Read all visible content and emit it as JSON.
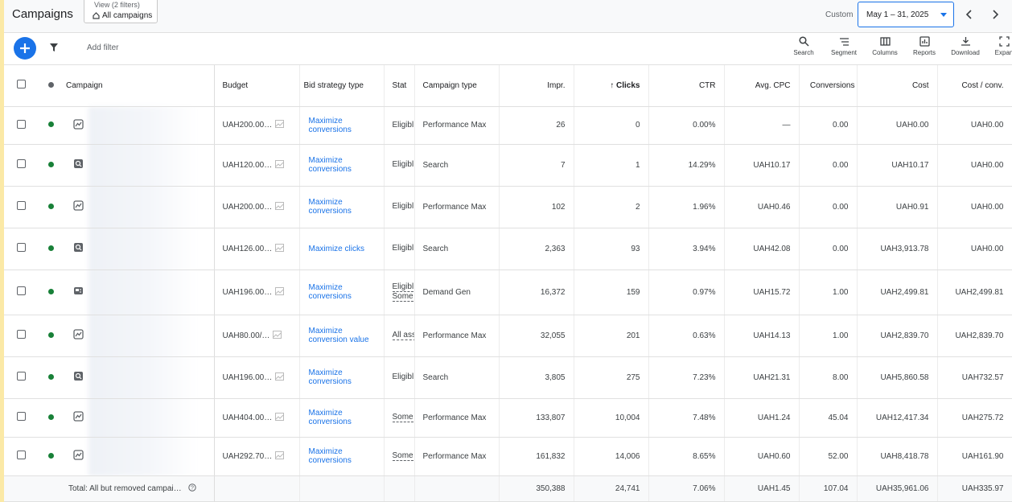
{
  "header": {
    "title": "Campaigns",
    "view_label": "View (2 filters)",
    "view_value": "All campaigns",
    "date_label": "Custom",
    "date_range": "May 1 – 31, 2025"
  },
  "toolbar": {
    "add_filter": "Add filter",
    "tools": [
      "Search",
      "Segment",
      "Columns",
      "Reports",
      "Download",
      "Expan"
    ]
  },
  "table": {
    "columns": [
      "Campaign",
      "Budget",
      "Bid strategy type",
      "Stat",
      "Campaign type",
      "Impr.",
      "↑ Clicks",
      "CTR",
      "Avg. CPC",
      "Conversions",
      "Cost",
      "Cost / conv."
    ],
    "rows": [
      {
        "budget": "UAH200.00…",
        "bid": "Maximize conversions",
        "status": [
          "Eligibl"
        ],
        "type": "Performance Max",
        "impr": "26",
        "clicks": "0",
        "ctr": "0.00%",
        "cpc": "—",
        "conv": "0.00",
        "cost": "UAH0.00",
        "cost_conv": "UAH0.00"
      },
      {
        "budget": "UAH120.00…",
        "bid": "Maximize conversions",
        "status": [
          "Eligibl"
        ],
        "type": "Search",
        "impr": "7",
        "clicks": "1",
        "ctr": "14.29%",
        "cpc": "UAH10.17",
        "conv": "0.00",
        "cost": "UAH10.17",
        "cost_conv": "UAH0.00"
      },
      {
        "budget": "UAH200.00…",
        "bid": "Maximize conversions",
        "status": [
          "Eligibl"
        ],
        "type": "Performance Max",
        "impr": "102",
        "clicks": "2",
        "ctr": "1.96%",
        "cpc": "UAH0.46",
        "conv": "0.00",
        "cost": "UAH0.91",
        "cost_conv": "UAH0.00"
      },
      {
        "budget": "UAH126.00…",
        "bid": "Maximize clicks",
        "status": [
          "Eligibl"
        ],
        "type": "Search",
        "impr": "2,363",
        "clicks": "93",
        "ctr": "3.94%",
        "cpc": "UAH42.08",
        "conv": "0.00",
        "cost": "UAH3,913.78",
        "cost_conv": "UAH0.00"
      },
      {
        "budget": "UAH196.00…",
        "bid": "Maximize conversions",
        "status": [
          "Eligibl",
          "Some"
        ],
        "type": "Demand Gen",
        "impr": "16,372",
        "clicks": "159",
        "ctr": "0.97%",
        "cpc": "UAH15.72",
        "conv": "1.00",
        "cost": "UAH2,499.81",
        "cost_conv": "UAH2,499.81"
      },
      {
        "budget": "UAH80.00/…",
        "bid": "Maximize conversion value",
        "status": [
          "All ass"
        ],
        "type": "Performance Max",
        "impr": "32,055",
        "clicks": "201",
        "ctr": "0.63%",
        "cpc": "UAH14.13",
        "conv": "1.00",
        "cost": "UAH2,839.70",
        "cost_conv": "UAH2,839.70"
      },
      {
        "budget": "UAH196.00…",
        "bid": "Maximize conversions",
        "status": [
          "Eligibl"
        ],
        "type": "Search",
        "impr": "3,805",
        "clicks": "275",
        "ctr": "7.23%",
        "cpc": "UAH21.31",
        "conv": "8.00",
        "cost": "UAH5,860.58",
        "cost_conv": "UAH732.57"
      },
      {
        "budget": "UAH404.00…",
        "bid": "Maximize conversions",
        "status": [
          "Some"
        ],
        "type": "Performance Max",
        "impr": "133,807",
        "clicks": "10,004",
        "ctr": "7.48%",
        "cpc": "UAH1.24",
        "conv": "45.04",
        "cost": "UAH12,417.34",
        "cost_conv": "UAH275.72"
      },
      {
        "budget": "UAH292.70…",
        "bid": "Maximize conversions",
        "status": [
          "Some"
        ],
        "type": "Performance Max",
        "impr": "161,832",
        "clicks": "14,006",
        "ctr": "8.65%",
        "cpc": "UAH0.60",
        "conv": "52.00",
        "cost": "UAH8,418.78",
        "cost_conv": "UAH161.90"
      }
    ],
    "total": {
      "label": "Total: All but removed campai…",
      "impr": "350,388",
      "clicks": "24,741",
      "ctr": "7.06%",
      "cpc": "UAH1.45",
      "conv": "107.04",
      "cost": "UAH35,961.06",
      "cost_conv": "UAH335.97"
    }
  }
}
